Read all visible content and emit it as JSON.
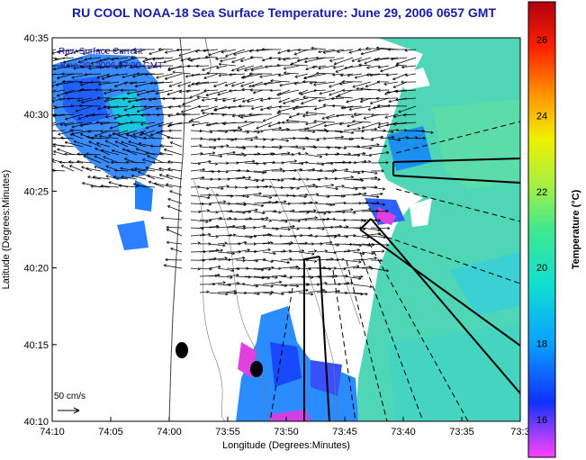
{
  "title": "RU COOL  NOAA-18  Sea Surface Temperature:  June 29, 2006 0657 GMT",
  "chart_data": {
    "type": "map",
    "xlabel": "Longitude (Degrees:Minutes)",
    "ylabel": "Latitude (Degrees:Minutes)",
    "x_ticks": [
      "74:10",
      "74:05",
      "74:00",
      "73:55",
      "73:50",
      "73:45",
      "73:40",
      "73:35",
      "73:3"
    ],
    "y_ticks": [
      "40:35",
      "40:30",
      "40:25",
      "40:20",
      "40:15",
      "40:10"
    ],
    "xlim_minutes": [
      -70,
      -30
    ],
    "ylim_minutes": [
      10,
      35
    ],
    "legend_overlay": {
      "line1": "Raw Surface Current",
      "line2": "June 29, 2006 07:00 GMT"
    },
    "scale": {
      "label": "50 cm/s"
    },
    "colorbar": {
      "label": "Temperature (°C)",
      "ticks": [
        26,
        24,
        22,
        20,
        18,
        16
      ],
      "range": [
        15,
        27
      ]
    },
    "colors": {
      "title": "#1a1aa8",
      "water_dominant": "#3fd2c4",
      "land": "#ffffff"
    }
  }
}
